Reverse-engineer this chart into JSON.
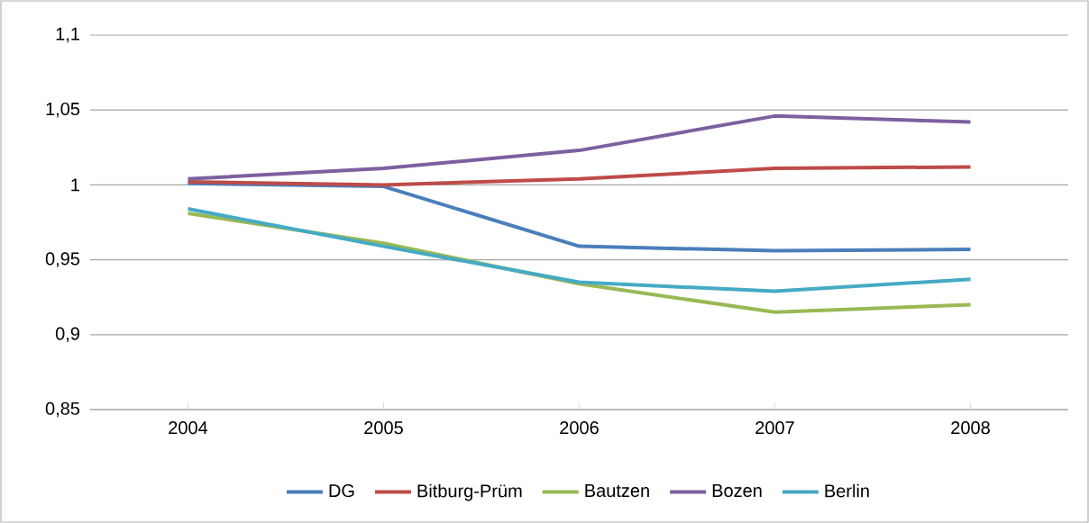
{
  "chart_data": {
    "type": "line",
    "categories": [
      "2004",
      "2005",
      "2006",
      "2007",
      "2008"
    ],
    "series": [
      {
        "name": "DG",
        "color": "#4a7ebb",
        "values": [
          1.001,
          0.999,
          0.959,
          0.956,
          0.957
        ]
      },
      {
        "name": "Bitburg-Prüm",
        "color": "#be4b48",
        "values": [
          1.002,
          1.0,
          1.004,
          1.011,
          1.012
        ]
      },
      {
        "name": "Bautzen",
        "color": "#98b954",
        "values": [
          0.981,
          0.961,
          0.934,
          0.915,
          0.92
        ]
      },
      {
        "name": "Bozen",
        "color": "#7d60a0",
        "values": [
          1.004,
          1.011,
          1.023,
          1.046,
          1.042
        ]
      },
      {
        "name": "Berlin",
        "color": "#46aac5",
        "values": [
          0.984,
          0.959,
          0.935,
          0.929,
          0.937
        ]
      }
    ],
    "ylim": [
      0.85,
      1.1
    ],
    "yticks": [
      {
        "value": 0.85,
        "label": "0,85"
      },
      {
        "value": 0.9,
        "label": "0,9"
      },
      {
        "value": 0.95,
        "label": "0,95"
      },
      1,
      {
        "value": 1.05,
        "label": "1,05"
      },
      {
        "value": 1.1,
        "label": "1,1"
      }
    ],
    "grid": "y",
    "legend": "bottom",
    "marker": "none",
    "line_style": "solid"
  }
}
